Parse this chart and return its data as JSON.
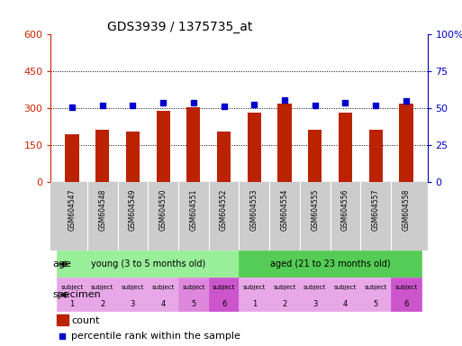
{
  "title": "GDS3939 / 1375735_at",
  "samples": [
    "GSM604547",
    "GSM604548",
    "GSM604549",
    "GSM604550",
    "GSM604551",
    "GSM604552",
    "GSM604553",
    "GSM604554",
    "GSM604555",
    "GSM604556",
    "GSM604557",
    "GSM604558"
  ],
  "count_values": [
    195,
    215,
    205,
    290,
    305,
    205,
    285,
    320,
    215,
    285,
    215,
    320
  ],
  "percentile_values": [
    51,
    52,
    52,
    54,
    54,
    51.5,
    53,
    56,
    52,
    54,
    52,
    55
  ],
  "bar_color": "#bb2200",
  "dot_color": "#0000cc",
  "left_ylim": [
    0,
    600
  ],
  "left_yticks": [
    0,
    150,
    300,
    450,
    600
  ],
  "right_ylim": [
    0,
    100
  ],
  "right_yticks": [
    0,
    25,
    50,
    75,
    100
  ],
  "right_tick_labels": [
    "0",
    "25",
    "50",
    "75",
    "100%"
  ],
  "age_groups": [
    {
      "label": "young (3 to 5 months old)",
      "start": 0,
      "end": 6,
      "color": "#99ee99"
    },
    {
      "label": "aged (21 to 23 months old)",
      "start": 6,
      "end": 12,
      "color": "#55cc55"
    }
  ],
  "specimen_colors": [
    "#e8a8e8",
    "#e8a8e8",
    "#e8a8e8",
    "#e8a8e8",
    "#dd88dd",
    "#cc55cc",
    "#e8a8e8",
    "#e8a8e8",
    "#e8a8e8",
    "#e8a8e8",
    "#e8a8e8",
    "#cc55cc"
  ],
  "subject_numbers": [
    1,
    2,
    3,
    4,
    5,
    6,
    1,
    2,
    3,
    4,
    5,
    6
  ],
  "age_label": "age",
  "specimen_label": "specimen",
  "legend_count": "count",
  "legend_percentile": "percentile rank within the sample",
  "tick_label_color_left": "#cc2200",
  "tick_label_color_right": "#0000cc",
  "background_color": "#ffffff",
  "xticklabel_bg": "#cccccc"
}
